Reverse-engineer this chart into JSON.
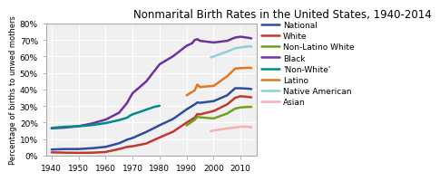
{
  "title": "Nonmarital Birth Rates in the United States, 1940-2014",
  "ylabel": "Percentage of births to unwed mothers",
  "ylim": [
    0,
    0.8
  ],
  "yticks": [
    0,
    0.1,
    0.2,
    0.3,
    0.4,
    0.5,
    0.6,
    0.7,
    0.8
  ],
  "ytick_labels": [
    "0%",
    "10%",
    "20%",
    "30%",
    "40%",
    "50%",
    "60%",
    "70%",
    "80%"
  ],
  "xticks": [
    1940,
    1950,
    1960,
    1970,
    1980,
    1990,
    2000,
    2010
  ],
  "xlim": [
    1938,
    2016
  ],
  "series": {
    "National": {
      "color": "#2E4DA0",
      "data": [
        [
          1940,
          0.037
        ],
        [
          1945,
          0.04
        ],
        [
          1950,
          0.04
        ],
        [
          1955,
          0.045
        ],
        [
          1960,
          0.053
        ],
        [
          1965,
          0.075
        ],
        [
          1968,
          0.097
        ],
        [
          1970,
          0.107
        ],
        [
          1975,
          0.143
        ],
        [
          1980,
          0.184
        ],
        [
          1985,
          0.222
        ],
        [
          1990,
          0.28
        ],
        [
          1993,
          0.31
        ],
        [
          1994,
          0.322
        ],
        [
          1995,
          0.32
        ],
        [
          2000,
          0.33
        ],
        [
          2005,
          0.365
        ],
        [
          2008,
          0.408
        ],
        [
          2010,
          0.408
        ],
        [
          2013,
          0.405
        ],
        [
          2014,
          0.403
        ]
      ]
    },
    "White": {
      "color": "#C0392B",
      "data": [
        [
          1940,
          0.02
        ],
        [
          1945,
          0.018
        ],
        [
          1950,
          0.017
        ],
        [
          1955,
          0.018
        ],
        [
          1960,
          0.022
        ],
        [
          1965,
          0.04
        ],
        [
          1968,
          0.053
        ],
        [
          1970,
          0.057
        ],
        [
          1975,
          0.073
        ],
        [
          1980,
          0.11
        ],
        [
          1985,
          0.145
        ],
        [
          1990,
          0.2
        ],
        [
          1993,
          0.23
        ],
        [
          1994,
          0.252
        ],
        [
          1995,
          0.25
        ],
        [
          2000,
          0.27
        ],
        [
          2005,
          0.31
        ],
        [
          2008,
          0.35
        ],
        [
          2010,
          0.36
        ],
        [
          2013,
          0.355
        ],
        [
          2014,
          0.353
        ]
      ]
    },
    "Non-Latino White": {
      "color": "#70A020",
      "data": [
        [
          1990,
          0.183
        ],
        [
          1993,
          0.217
        ],
        [
          1994,
          0.235
        ],
        [
          1995,
          0.232
        ],
        [
          2000,
          0.225
        ],
        [
          2005,
          0.255
        ],
        [
          2008,
          0.285
        ],
        [
          2010,
          0.292
        ],
        [
          2013,
          0.295
        ],
        [
          2014,
          0.295
        ]
      ]
    },
    "Black": {
      "color": "#7030A0",
      "data": [
        [
          1940,
          0.165
        ],
        [
          1945,
          0.17
        ],
        [
          1950,
          0.178
        ],
        [
          1955,
          0.195
        ],
        [
          1960,
          0.218
        ],
        [
          1965,
          0.26
        ],
        [
          1968,
          0.32
        ],
        [
          1969,
          0.35
        ],
        [
          1970,
          0.378
        ],
        [
          1975,
          0.448
        ],
        [
          1980,
          0.553
        ],
        [
          1985,
          0.602
        ],
        [
          1990,
          0.665
        ],
        [
          1992,
          0.68
        ],
        [
          1993,
          0.7
        ],
        [
          1994,
          0.705
        ],
        [
          1995,
          0.695
        ],
        [
          2000,
          0.685
        ],
        [
          2005,
          0.695
        ],
        [
          2008,
          0.715
        ],
        [
          2010,
          0.72
        ],
        [
          2013,
          0.713
        ],
        [
          2014,
          0.71
        ]
      ]
    },
    "Non-White": {
      "color": "#008B8B",
      "data": [
        [
          1940,
          0.168
        ],
        [
          1945,
          0.175
        ],
        [
          1950,
          0.178
        ],
        [
          1955,
          0.185
        ],
        [
          1960,
          0.197
        ],
        [
          1965,
          0.215
        ],
        [
          1968,
          0.23
        ],
        [
          1969,
          0.242
        ],
        [
          1970,
          0.25
        ],
        [
          1975,
          0.278
        ],
        [
          1978,
          0.295
        ],
        [
          1980,
          0.302
        ]
      ]
    },
    "Latino": {
      "color": "#E07820",
      "data": [
        [
          1990,
          0.365
        ],
        [
          1993,
          0.395
        ],
        [
          1994,
          0.43
        ],
        [
          1995,
          0.415
        ],
        [
          1998,
          0.42
        ],
        [
          2000,
          0.422
        ],
        [
          2005,
          0.48
        ],
        [
          2008,
          0.527
        ],
        [
          2010,
          0.53
        ],
        [
          2013,
          0.532
        ],
        [
          2014,
          0.53
        ]
      ]
    },
    "Native American": {
      "color": "#92CDDC",
      "data": [
        [
          1999,
          0.595
        ],
        [
          2000,
          0.6
        ],
        [
          2005,
          0.63
        ],
        [
          2008,
          0.65
        ],
        [
          2010,
          0.655
        ],
        [
          2013,
          0.662
        ],
        [
          2014,
          0.66
        ]
      ]
    },
    "Asian": {
      "color": "#F4AEB4",
      "data": [
        [
          1999,
          0.148
        ],
        [
          2000,
          0.152
        ],
        [
          2005,
          0.165
        ],
        [
          2008,
          0.17
        ],
        [
          2010,
          0.175
        ],
        [
          2013,
          0.175
        ],
        [
          2014,
          0.172
        ]
      ]
    }
  },
  "legend_order": [
    "National",
    "White",
    "Non-Latino White",
    "Black",
    "Non-White",
    "Latino",
    "Native American",
    "Asian"
  ],
  "legend_labels": [
    "National",
    "White",
    "Non-Latino White",
    "Black",
    "'Non-White'",
    "Latino",
    "Native American",
    "Asian"
  ],
  "title_fontsize": 8.5,
  "ylabel_fontsize": 6.0,
  "tick_fontsize": 6.5,
  "legend_fontsize": 6.5,
  "linewidth": 1.8,
  "plot_bg": "#f0f0f0",
  "fig_bg": "#ffffff",
  "grid_color": "#ffffff",
  "spine_color": "#aaaaaa"
}
